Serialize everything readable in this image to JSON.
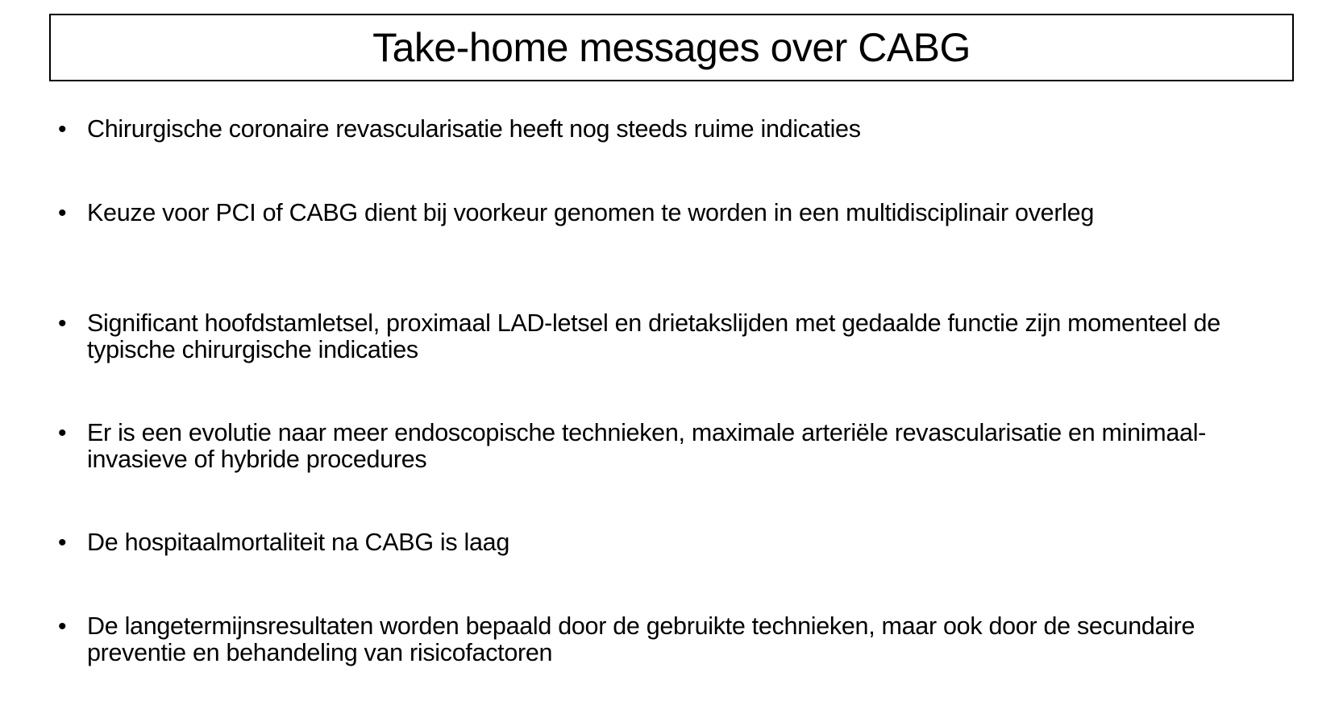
{
  "slide": {
    "title": "Take-home messages over CABG",
    "bullet_char": "•",
    "bullets": [
      {
        "text": "Chirurgische coronaire revascularisatie heeft nog steeds ruime indicaties"
      },
      {
        "text": "Keuze voor PCI of CABG dient bij voorkeur genomen te worden in een multidisciplinair overleg"
      },
      {
        "text": "Significant hoofdstamletsel, proximaal LAD-letsel en drietakslijden met gedaalde functie zijn momenteel de typische chirurgische indicaties"
      },
      {
        "text": "Er is een evolutie naar meer endoscopische technieken, maximale arteriële revascularisatie en minimaal-invasieve of hybride procedures"
      },
      {
        "text": "De hospitaalmortaliteit na CABG is laag"
      },
      {
        "text": "De langetermijnsresultaten worden bepaald door de gebruikte technieken, maar ook door de secundaire preventie en behandeling van risicofactoren"
      }
    ]
  }
}
